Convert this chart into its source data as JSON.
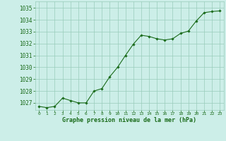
{
  "x": [
    0,
    1,
    2,
    3,
    4,
    5,
    6,
    7,
    8,
    9,
    10,
    11,
    12,
    13,
    14,
    15,
    16,
    17,
    18,
    19,
    20,
    21,
    22,
    23
  ],
  "y": [
    1026.7,
    1026.6,
    1026.7,
    1027.4,
    1027.2,
    1027.0,
    1027.0,
    1028.0,
    1028.2,
    1029.2,
    1030.0,
    1031.0,
    1031.95,
    1032.7,
    1032.6,
    1032.4,
    1032.3,
    1032.4,
    1032.85,
    1033.05,
    1033.9,
    1034.6,
    1034.7,
    1034.75
  ],
  "line_color": "#1a6b1a",
  "marker_color": "#1a6b1a",
  "bg_color": "#cceee8",
  "grid_color": "#99ccbb",
  "xlabel": "Graphe pression niveau de la mer (hPa)",
  "xlabel_color": "#1a6b1a",
  "ylim": [
    1026.4,
    1035.55
  ],
  "xlim": [
    -0.5,
    23.5
  ],
  "yticks": [
    1027,
    1028,
    1029,
    1030,
    1031,
    1032,
    1033,
    1034,
    1035
  ],
  "xticks": [
    0,
    1,
    2,
    3,
    4,
    5,
    6,
    7,
    8,
    9,
    10,
    11,
    12,
    13,
    14,
    15,
    16,
    17,
    18,
    19,
    20,
    21,
    22,
    23
  ],
  "tick_color": "#1a6b1a",
  "figsize": [
    3.2,
    2.0
  ],
  "dpi": 100
}
